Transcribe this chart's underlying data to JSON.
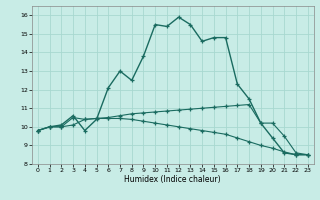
{
  "xlabel": "Humidex (Indice chaleur)",
  "background_color": "#c8ece6",
  "grid_color": "#a8d8d0",
  "line_color": "#1a6b60",
  "xlim": [
    -0.5,
    23.5
  ],
  "ylim": [
    8,
    16.5
  ],
  "yticks": [
    8,
    9,
    10,
    11,
    12,
    13,
    14,
    15,
    16
  ],
  "xticks": [
    0,
    1,
    2,
    3,
    4,
    5,
    6,
    7,
    8,
    9,
    10,
    11,
    12,
    13,
    14,
    15,
    16,
    17,
    18,
    19,
    20,
    21,
    22,
    23
  ],
  "series1": [
    [
      0,
      9.8
    ],
    [
      1,
      10.0
    ],
    [
      2,
      10.1
    ],
    [
      3,
      10.6
    ],
    [
      4,
      9.8
    ],
    [
      5,
      10.4
    ],
    [
      6,
      12.1
    ],
    [
      7,
      13.0
    ],
    [
      8,
      12.5
    ],
    [
      9,
      13.8
    ],
    [
      10,
      15.5
    ],
    [
      11,
      15.4
    ],
    [
      12,
      15.9
    ],
    [
      13,
      15.5
    ],
    [
      14,
      14.6
    ],
    [
      15,
      14.8
    ],
    [
      16,
      14.8
    ],
    [
      17,
      12.3
    ],
    [
      18,
      11.5
    ],
    [
      19,
      10.2
    ],
    [
      20,
      9.4
    ],
    [
      21,
      8.6
    ],
    [
      22,
      8.5
    ],
    [
      23,
      8.5
    ]
  ],
  "series2": [
    [
      0,
      9.8
    ],
    [
      1,
      10.0
    ],
    [
      2,
      10.0
    ],
    [
      3,
      10.5
    ],
    [
      4,
      10.4
    ],
    [
      5,
      10.45
    ],
    [
      6,
      10.5
    ],
    [
      7,
      10.6
    ],
    [
      8,
      10.7
    ],
    [
      9,
      10.75
    ],
    [
      10,
      10.8
    ],
    [
      11,
      10.85
    ],
    [
      12,
      10.9
    ],
    [
      13,
      10.95
    ],
    [
      14,
      11.0
    ],
    [
      15,
      11.05
    ],
    [
      16,
      11.1
    ],
    [
      17,
      11.15
    ],
    [
      18,
      11.2
    ],
    [
      19,
      10.2
    ],
    [
      20,
      10.2
    ],
    [
      21,
      9.5
    ],
    [
      22,
      8.6
    ],
    [
      23,
      8.5
    ]
  ],
  "series3": [
    [
      0,
      9.8
    ],
    [
      1,
      10.0
    ],
    [
      2,
      10.0
    ],
    [
      3,
      10.1
    ],
    [
      4,
      10.4
    ],
    [
      5,
      10.45
    ],
    [
      6,
      10.45
    ],
    [
      7,
      10.45
    ],
    [
      8,
      10.4
    ],
    [
      9,
      10.3
    ],
    [
      10,
      10.2
    ],
    [
      11,
      10.1
    ],
    [
      12,
      10.0
    ],
    [
      13,
      9.9
    ],
    [
      14,
      9.8
    ],
    [
      15,
      9.7
    ],
    [
      16,
      9.6
    ],
    [
      17,
      9.4
    ],
    [
      18,
      9.2
    ],
    [
      19,
      9.0
    ],
    [
      20,
      8.85
    ],
    [
      21,
      8.65
    ],
    [
      22,
      8.5
    ],
    [
      23,
      8.5
    ]
  ]
}
